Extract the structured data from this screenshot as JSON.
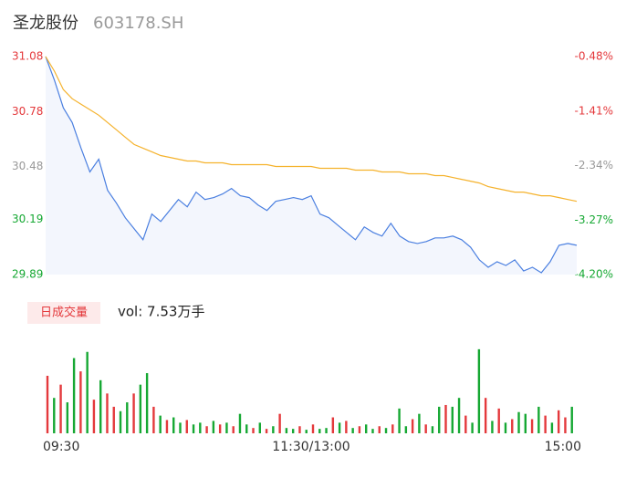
{
  "chart_data": {
    "type": "intraday",
    "title": "圣龙股份",
    "subtitle": "603178.SH",
    "xlim": [
      0,
      240
    ],
    "xticks": [
      {
        "value": 0,
        "label": "09:30"
      },
      {
        "value": 120,
        "label": "11:30/13:00"
      },
      {
        "value": 240,
        "label": "15:00"
      }
    ],
    "ylim": [
      29.89,
      31.08
    ],
    "yticks": [
      31.08,
      30.78,
      30.48,
      30.19,
      29.89
    ],
    "y2lim": [
      -4.2,
      -0.48
    ],
    "y2ticks": [
      {
        "value": -0.48,
        "label": "-0.48%"
      },
      {
        "value": -1.41,
        "label": "-1.41%"
      },
      {
        "value": -2.34,
        "label": "-2.34%"
      },
      {
        "value": -3.27,
        "label": "-3.27%"
      },
      {
        "value": -4.2,
        "label": "-4.20%"
      }
    ],
    "ytick_colors": [
      "#e4393c",
      "#e4393c",
      "#999999",
      "#16a833",
      "#16a833"
    ],
    "x": [
      0,
      4,
      8,
      12,
      16,
      20,
      24,
      28,
      32,
      36,
      40,
      44,
      48,
      52,
      56,
      60,
      64,
      68,
      72,
      76,
      80,
      84,
      88,
      92,
      96,
      100,
      104,
      108,
      112,
      116,
      120,
      124,
      128,
      132,
      136,
      140,
      144,
      148,
      152,
      156,
      160,
      164,
      168,
      172,
      176,
      180,
      184,
      188,
      192,
      196,
      200,
      204,
      208,
      212,
      216,
      220,
      224,
      228,
      232,
      236,
      240
    ],
    "series": [
      {
        "name": "price",
        "color": "#4a7fe0",
        "values": [
          31.08,
          30.95,
          30.8,
          30.72,
          30.58,
          30.45,
          30.52,
          30.35,
          30.28,
          30.2,
          30.14,
          30.08,
          30.22,
          30.18,
          30.24,
          30.3,
          30.26,
          30.34,
          30.3,
          30.31,
          30.33,
          30.36,
          30.32,
          30.31,
          30.27,
          30.24,
          30.29,
          30.3,
          30.31,
          30.3,
          30.32,
          30.22,
          30.2,
          30.16,
          30.12,
          30.08,
          30.15,
          30.12,
          30.1,
          30.17,
          30.1,
          30.07,
          30.06,
          30.07,
          30.09,
          30.09,
          30.1,
          30.08,
          30.04,
          29.97,
          29.93,
          29.96,
          29.94,
          29.97,
          29.91,
          29.93,
          29.9,
          29.96,
          30.05,
          30.06,
          30.05
        ]
      },
      {
        "name": "average",
        "color": "#f5b22c",
        "values": [
          31.08,
          31.0,
          30.9,
          30.85,
          30.82,
          30.79,
          30.76,
          30.72,
          30.68,
          30.64,
          30.6,
          30.58,
          30.56,
          30.54,
          30.53,
          30.52,
          30.51,
          30.51,
          30.5,
          30.5,
          30.5,
          30.49,
          30.49,
          30.49,
          30.49,
          30.49,
          30.48,
          30.48,
          30.48,
          30.48,
          30.48,
          30.47,
          30.47,
          30.47,
          30.47,
          30.46,
          30.46,
          30.46,
          30.45,
          30.45,
          30.45,
          30.44,
          30.44,
          30.44,
          30.43,
          30.43,
          30.42,
          30.41,
          30.4,
          30.39,
          30.37,
          30.36,
          30.35,
          30.34,
          30.34,
          30.33,
          30.32,
          30.32,
          30.31,
          30.3,
          30.29
        ]
      }
    ],
    "volume": {
      "legend": "日成交量",
      "label": "vol: 7.53万手",
      "vlim": [
        0,
        100
      ],
      "up_color": "#e4393c",
      "down_color": "#16a833",
      "x": [
        0,
        3,
        6,
        9,
        12,
        15,
        18,
        21,
        24,
        27,
        30,
        33,
        36,
        39,
        42,
        45,
        48,
        51,
        54,
        57,
        60,
        63,
        66,
        69,
        72,
        75,
        78,
        81,
        84,
        87,
        90,
        93,
        96,
        99,
        102,
        105,
        108,
        111,
        114,
        117,
        120,
        123,
        126,
        129,
        132,
        135,
        138,
        141,
        144,
        147,
        150,
        153,
        156,
        159,
        162,
        165,
        168,
        171,
        174,
        177,
        180,
        183,
        186,
        189,
        192,
        195,
        198,
        201,
        204,
        207,
        210,
        213,
        216,
        219,
        222,
        225,
        228,
        231,
        234,
        237
      ],
      "values": [
        65,
        40,
        55,
        35,
        85,
        70,
        92,
        38,
        60,
        45,
        30,
        25,
        35,
        45,
        55,
        68,
        30,
        20,
        15,
        18,
        12,
        15,
        10,
        12,
        8,
        14,
        10,
        12,
        8,
        22,
        10,
        6,
        12,
        5,
        8,
        22,
        6,
        5,
        8,
        4,
        10,
        5,
        6,
        18,
        12,
        14,
        6,
        8,
        10,
        5,
        8,
        6,
        10,
        28,
        8,
        16,
        22,
        10,
        8,
        30,
        32,
        30,
        40,
        20,
        12,
        95,
        40,
        14,
        28,
        12,
        16,
        24,
        22,
        16,
        30,
        20,
        12,
        26,
        18,
        30
      ],
      "up": [
        true,
        false,
        true,
        false,
        false,
        true,
        false,
        true,
        false,
        true,
        true,
        false,
        false,
        true,
        false,
        false,
        true,
        false,
        true,
        false,
        false,
        true,
        false,
        false,
        true,
        false,
        true,
        false,
        true,
        false,
        false,
        true,
        false,
        true,
        false,
        true,
        false,
        false,
        true,
        false,
        true,
        false,
        false,
        true,
        false,
        true,
        false,
        true,
        false,
        false,
        true,
        false,
        true,
        false,
        false,
        true,
        false,
        true,
        false,
        false,
        true,
        false,
        false,
        true,
        false,
        false,
        true,
        false,
        true,
        false,
        true,
        false,
        false,
        true,
        false,
        true,
        false,
        true,
        true,
        false
      ]
    }
  }
}
